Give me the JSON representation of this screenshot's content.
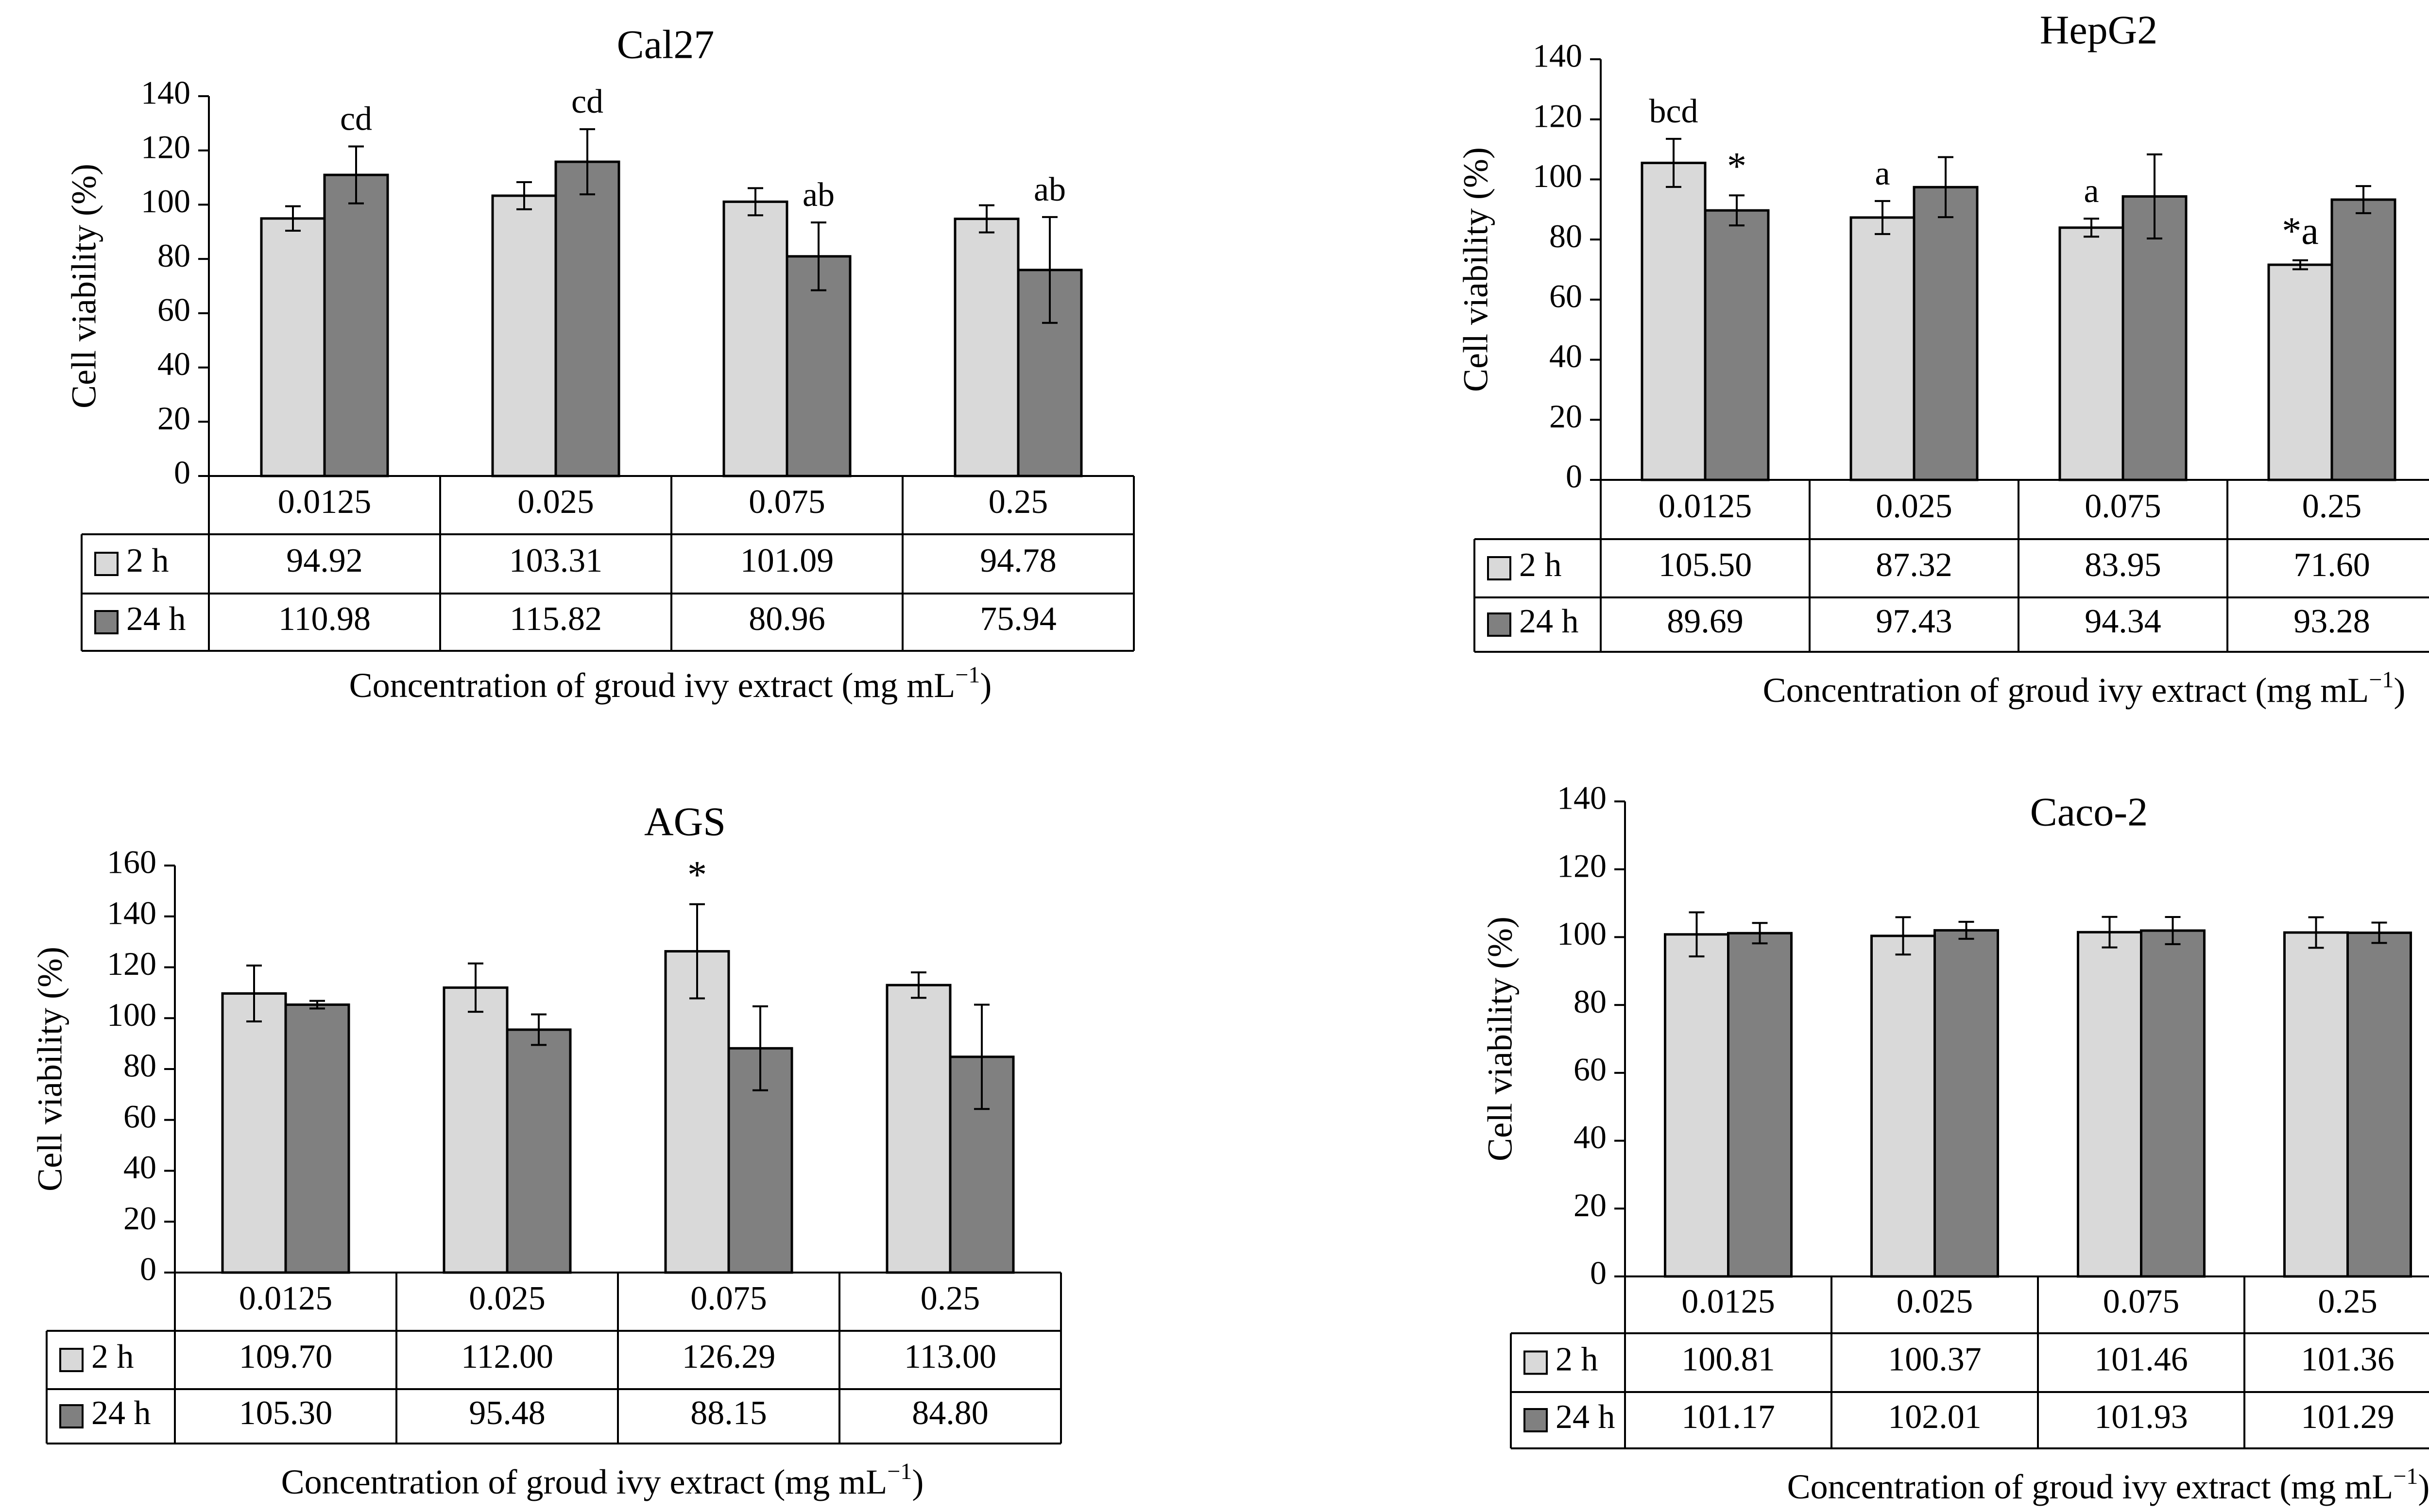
{
  "chart_data": [
    {
      "type": "bar",
      "title": "Cal27",
      "ylabel": "Cell viability (%)",
      "xlabel": "Concentration of groud ivy extract (mg mL",
      "xlabel_sup": "−1",
      "xlabel_end": ")",
      "ylim": [
        0,
        140
      ],
      "ystep": 20,
      "ytick_labels": [
        "0",
        "20",
        "40",
        "60",
        "80",
        "100",
        "120",
        "140"
      ],
      "categories": [
        "0.0125",
        "0.025",
        "0.075",
        "0.25"
      ],
      "series": [
        {
          "name": "2 h",
          "values": [
            94.92,
            103.31,
            101.09,
            94.78
          ],
          "labels": [
            "94.92",
            "103.31",
            "101.09",
            "94.78"
          ],
          "errors": [
            4.5,
            5.0,
            5.0,
            5.0
          ],
          "color": "#d9d9d9"
        },
        {
          "name": "24 h",
          "values": [
            110.98,
            115.82,
            80.96,
            75.94
          ],
          "labels": [
            "110.98",
            "115.82",
            "80.96",
            "75.94"
          ],
          "errors": [
            10.5,
            12.0,
            12.5,
            19.5
          ],
          "color": "#808080"
        }
      ],
      "annotations": [
        {
          "category": 0,
          "series": 1,
          "text": "cd"
        },
        {
          "category": 1,
          "series": 1,
          "text": "cd"
        },
        {
          "category": 2,
          "series": 1,
          "text": "ab"
        },
        {
          "category": 3,
          "series": 1,
          "text": "ab"
        }
      ]
    },
    {
      "type": "bar",
      "title": "HepG2",
      "ylabel": "Cell viability (%)",
      "xlabel": "Concentration of groud ivy extract (mg mL",
      "xlabel_sup": "−1",
      "xlabel_end": ")",
      "ylim": [
        0,
        140
      ],
      "ystep": 20,
      "ytick_labels": [
        "0",
        "20",
        "40",
        "60",
        "80",
        "100",
        "120",
        "140"
      ],
      "categories": [
        "0.0125",
        "0.025",
        "0.075",
        "0.25"
      ],
      "series": [
        {
          "name": "2 h",
          "values": [
            105.5,
            87.32,
            83.95,
            71.6
          ],
          "labels": [
            "105.50",
            "87.32",
            "83.95",
            "71.60"
          ],
          "errors": [
            8.0,
            5.5,
            3.0,
            1.5
          ],
          "color": "#d9d9d9"
        },
        {
          "name": "24 h",
          "values": [
            89.69,
            97.43,
            94.34,
            93.28
          ],
          "labels": [
            "89.69",
            "97.43",
            "94.34",
            "93.28"
          ],
          "errors": [
            5.0,
            10.0,
            14.0,
            4.5
          ],
          "color": "#808080"
        }
      ],
      "annotations": [
        {
          "category": 0,
          "series": 0,
          "text": "bcd"
        },
        {
          "category": 0,
          "series": 1,
          "text": "*"
        },
        {
          "category": 1,
          "series": 0,
          "text": "a"
        },
        {
          "category": 2,
          "series": 0,
          "text": "a"
        },
        {
          "category": 3,
          "series": 0,
          "text": "*a"
        }
      ]
    },
    {
      "type": "bar",
      "title": "AGS",
      "ylabel": "Cell viability (%)",
      "xlabel": "Concentration of groud ivy extract (mg mL",
      "xlabel_sup": "−1",
      "xlabel_end": ")",
      "ylim": [
        0,
        160
      ],
      "ystep": 20,
      "ytick_labels": [
        "0",
        "20",
        "40",
        "60",
        "80",
        "100",
        "120",
        "140",
        "160"
      ],
      "categories": [
        "0.0125",
        "0.025",
        "0.075",
        "0.25"
      ],
      "series": [
        {
          "name": "2 h",
          "values": [
            109.7,
            112.0,
            126.29,
            113.0
          ],
          "labels": [
            "109.70",
            "112.00",
            "126.29",
            "113.00"
          ],
          "errors": [
            11.0,
            9.5,
            18.5,
            5.0
          ],
          "color": "#d9d9d9"
        },
        {
          "name": "24 h",
          "values": [
            105.3,
            95.48,
            88.15,
            84.8
          ],
          "labels": [
            "105.30",
            "95.48",
            "88.15",
            "84.80"
          ],
          "errors": [
            1.5,
            6.0,
            16.5,
            20.5
          ],
          "color": "#808080"
        }
      ],
      "annotations": [
        {
          "category": 2,
          "series": 0,
          "text": "*"
        }
      ]
    },
    {
      "type": "bar",
      "title": "Caco-2",
      "ylabel": "Cell viability (%)",
      "xlabel": "Concentration of groud ivy extract (mg mL",
      "xlabel_sup": "−1",
      "xlabel_end": ")",
      "ylim": [
        0,
        140
      ],
      "ystep": 20,
      "ytick_labels": [
        "0",
        "20",
        "40",
        "60",
        "80",
        "100",
        "120",
        "140"
      ],
      "categories": [
        "0.0125",
        "0.025",
        "0.075",
        "0.25"
      ],
      "series": [
        {
          "name": "2 h",
          "values": [
            100.81,
            100.37,
            101.46,
            101.36
          ],
          "labels": [
            "100.81",
            "100.37",
            "101.46",
            "101.36"
          ],
          "errors": [
            6.5,
            5.5,
            4.5,
            4.5
          ],
          "color": "#d9d9d9"
        },
        {
          "name": "24 h",
          "values": [
            101.17,
            102.01,
            101.93,
            101.29
          ],
          "labels": [
            "101.17",
            "102.01",
            "101.93",
            "101.29"
          ],
          "errors": [
            3.0,
            2.5,
            4.0,
            3.0
          ],
          "color": "#808080"
        }
      ],
      "annotations": []
    }
  ]
}
